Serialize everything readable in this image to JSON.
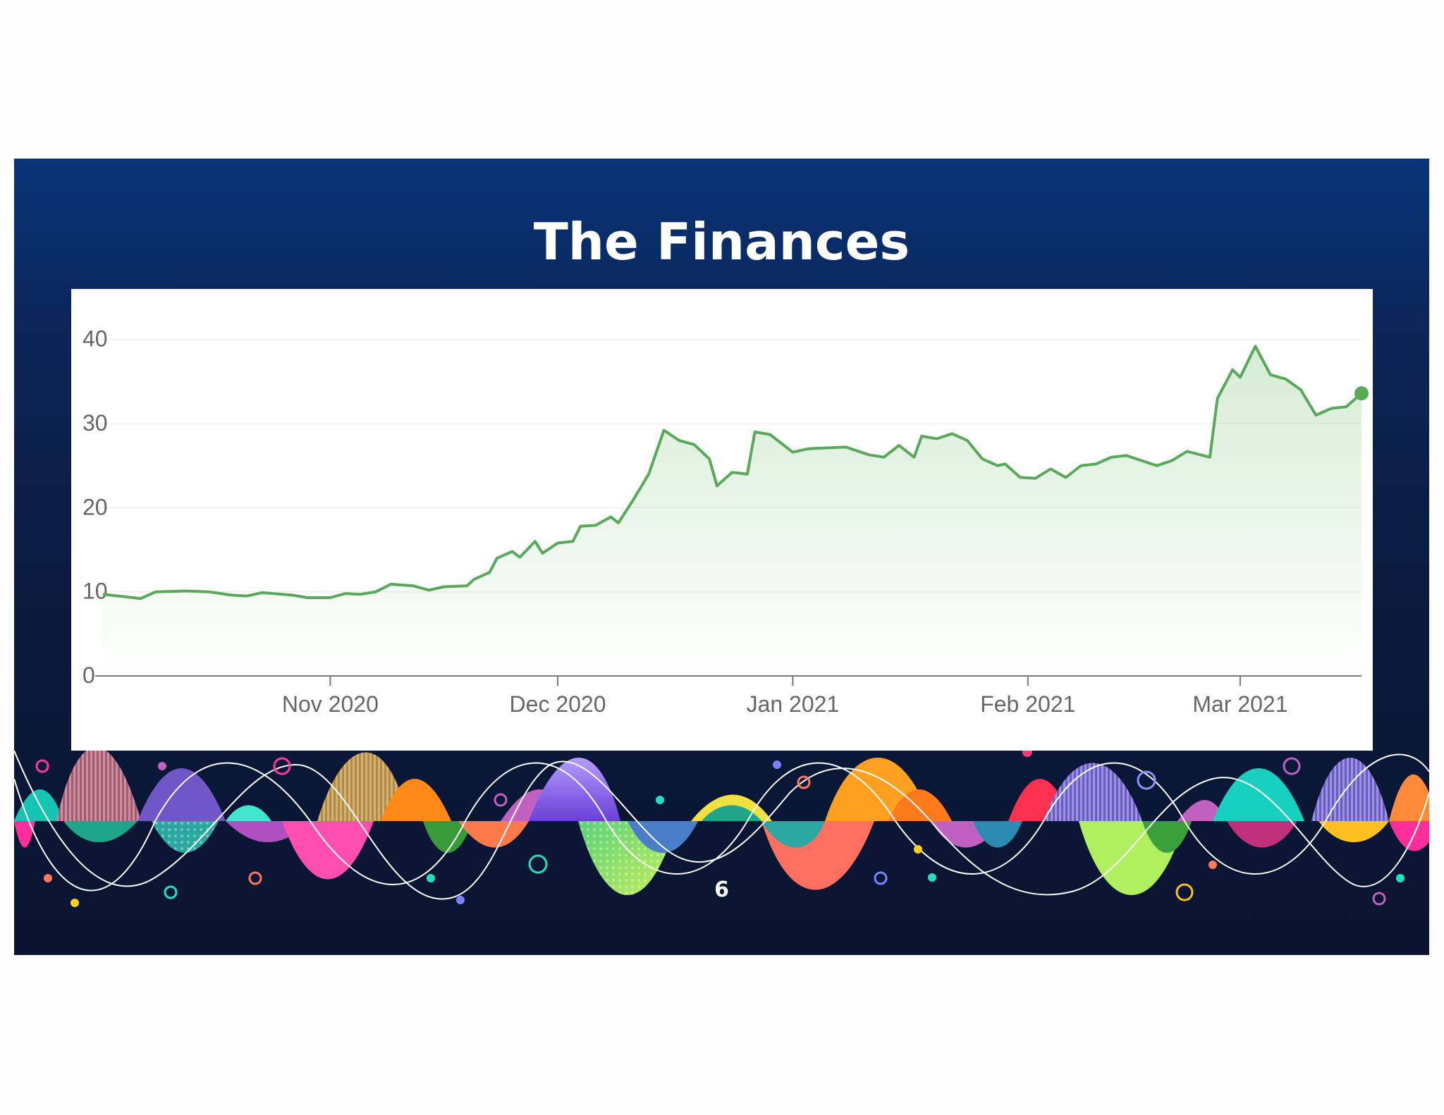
{
  "slide": {
    "title": "The Finances",
    "page_number": "6"
  },
  "chart_data": {
    "type": "area",
    "title": "",
    "xlabel": "",
    "ylabel": "",
    "ylim": [
      0,
      45
    ],
    "yticks": [
      0,
      10,
      20,
      30,
      40
    ],
    "xlim": [
      "2020-10-01",
      "2021-03-17"
    ],
    "xticks": [
      {
        "date": "2020-11-01",
        "label": "Nov 2020"
      },
      {
        "date": "2020-12-01",
        "label": "Dec 2020"
      },
      {
        "date": "2021-01-01",
        "label": "Jan 2021"
      },
      {
        "date": "2021-02-01",
        "label": "Feb 2021"
      },
      {
        "date": "2021-03-01",
        "label": "Mar 2021"
      }
    ],
    "grid": true,
    "line_color": "#5aa95a",
    "fill_color": "#7cc47c",
    "series": [
      {
        "name": "",
        "points": [
          [
            "2020-10-02",
            9.7
          ],
          [
            "2020-10-05",
            9.4
          ],
          [
            "2020-10-07",
            9.2
          ],
          [
            "2020-10-09",
            10.0
          ],
          [
            "2020-10-13",
            10.1
          ],
          [
            "2020-10-16",
            10.0
          ],
          [
            "2020-10-19",
            9.6
          ],
          [
            "2020-10-21",
            9.5
          ],
          [
            "2020-10-23",
            9.9
          ],
          [
            "2020-10-27",
            9.6
          ],
          [
            "2020-10-29",
            9.3
          ],
          [
            "2020-11-01",
            9.3
          ],
          [
            "2020-11-03",
            9.8
          ],
          [
            "2020-11-05",
            9.7
          ],
          [
            "2020-11-07",
            10.0
          ],
          [
            "2020-11-09",
            10.9
          ],
          [
            "2020-11-12",
            10.7
          ],
          [
            "2020-11-14",
            10.2
          ],
          [
            "2020-11-16",
            10.6
          ],
          [
            "2020-11-19",
            10.7
          ],
          [
            "2020-11-20",
            11.5
          ],
          [
            "2020-11-22",
            12.3
          ],
          [
            "2020-11-23",
            14.0
          ],
          [
            "2020-11-25",
            14.8
          ],
          [
            "2020-11-26",
            14.1
          ],
          [
            "2020-11-28",
            16.0
          ],
          [
            "2020-11-29",
            14.6
          ],
          [
            "2020-12-01",
            15.8
          ],
          [
            "2020-12-03",
            16.0
          ],
          [
            "2020-12-04",
            17.8
          ],
          [
            "2020-12-06",
            17.9
          ],
          [
            "2020-12-08",
            18.9
          ],
          [
            "2020-12-09",
            18.2
          ],
          [
            "2020-12-11",
            21.0
          ],
          [
            "2020-12-13",
            24.0
          ],
          [
            "2020-12-15",
            29.2
          ],
          [
            "2020-12-17",
            28.0
          ],
          [
            "2020-12-19",
            27.5
          ],
          [
            "2020-12-21",
            25.8
          ],
          [
            "2020-12-22",
            22.6
          ],
          [
            "2020-12-24",
            24.2
          ],
          [
            "2020-12-26",
            24.0
          ],
          [
            "2020-12-27",
            29.0
          ],
          [
            "2020-12-29",
            28.7
          ],
          [
            "2021-01-01",
            26.6
          ],
          [
            "2021-01-03",
            27.0
          ],
          [
            "2021-01-05",
            27.1
          ],
          [
            "2021-01-08",
            27.2
          ],
          [
            "2021-01-11",
            26.3
          ],
          [
            "2021-01-13",
            26.0
          ],
          [
            "2021-01-15",
            27.4
          ],
          [
            "2021-01-17",
            26.0
          ],
          [
            "2021-01-18",
            28.5
          ],
          [
            "2021-01-20",
            28.2
          ],
          [
            "2021-01-22",
            28.8
          ],
          [
            "2021-01-24",
            28.0
          ],
          [
            "2021-01-26",
            25.8
          ],
          [
            "2021-01-28",
            25.0
          ],
          [
            "2021-01-29",
            25.2
          ],
          [
            "2021-01-31",
            23.6
          ],
          [
            "2021-02-02",
            23.5
          ],
          [
            "2021-02-04",
            24.6
          ],
          [
            "2021-02-06",
            23.6
          ],
          [
            "2021-02-08",
            25.0
          ],
          [
            "2021-02-10",
            25.2
          ],
          [
            "2021-02-12",
            26.0
          ],
          [
            "2021-02-14",
            26.2
          ],
          [
            "2021-02-16",
            25.6
          ],
          [
            "2021-02-18",
            25.0
          ],
          [
            "2021-02-20",
            25.6
          ],
          [
            "2021-02-22",
            26.7
          ],
          [
            "2021-02-25",
            26.0
          ],
          [
            "2021-02-26",
            33.0
          ],
          [
            "2021-02-28",
            36.4
          ],
          [
            "2021-03-01",
            35.5
          ],
          [
            "2021-03-03",
            39.2
          ],
          [
            "2021-03-05",
            35.8
          ],
          [
            "2021-03-07",
            35.3
          ],
          [
            "2021-03-09",
            34.0
          ],
          [
            "2021-03-11",
            31.0
          ],
          [
            "2021-03-13",
            31.8
          ],
          [
            "2021-03-15",
            32.0
          ],
          [
            "2021-03-17",
            33.6
          ]
        ]
      }
    ]
  }
}
